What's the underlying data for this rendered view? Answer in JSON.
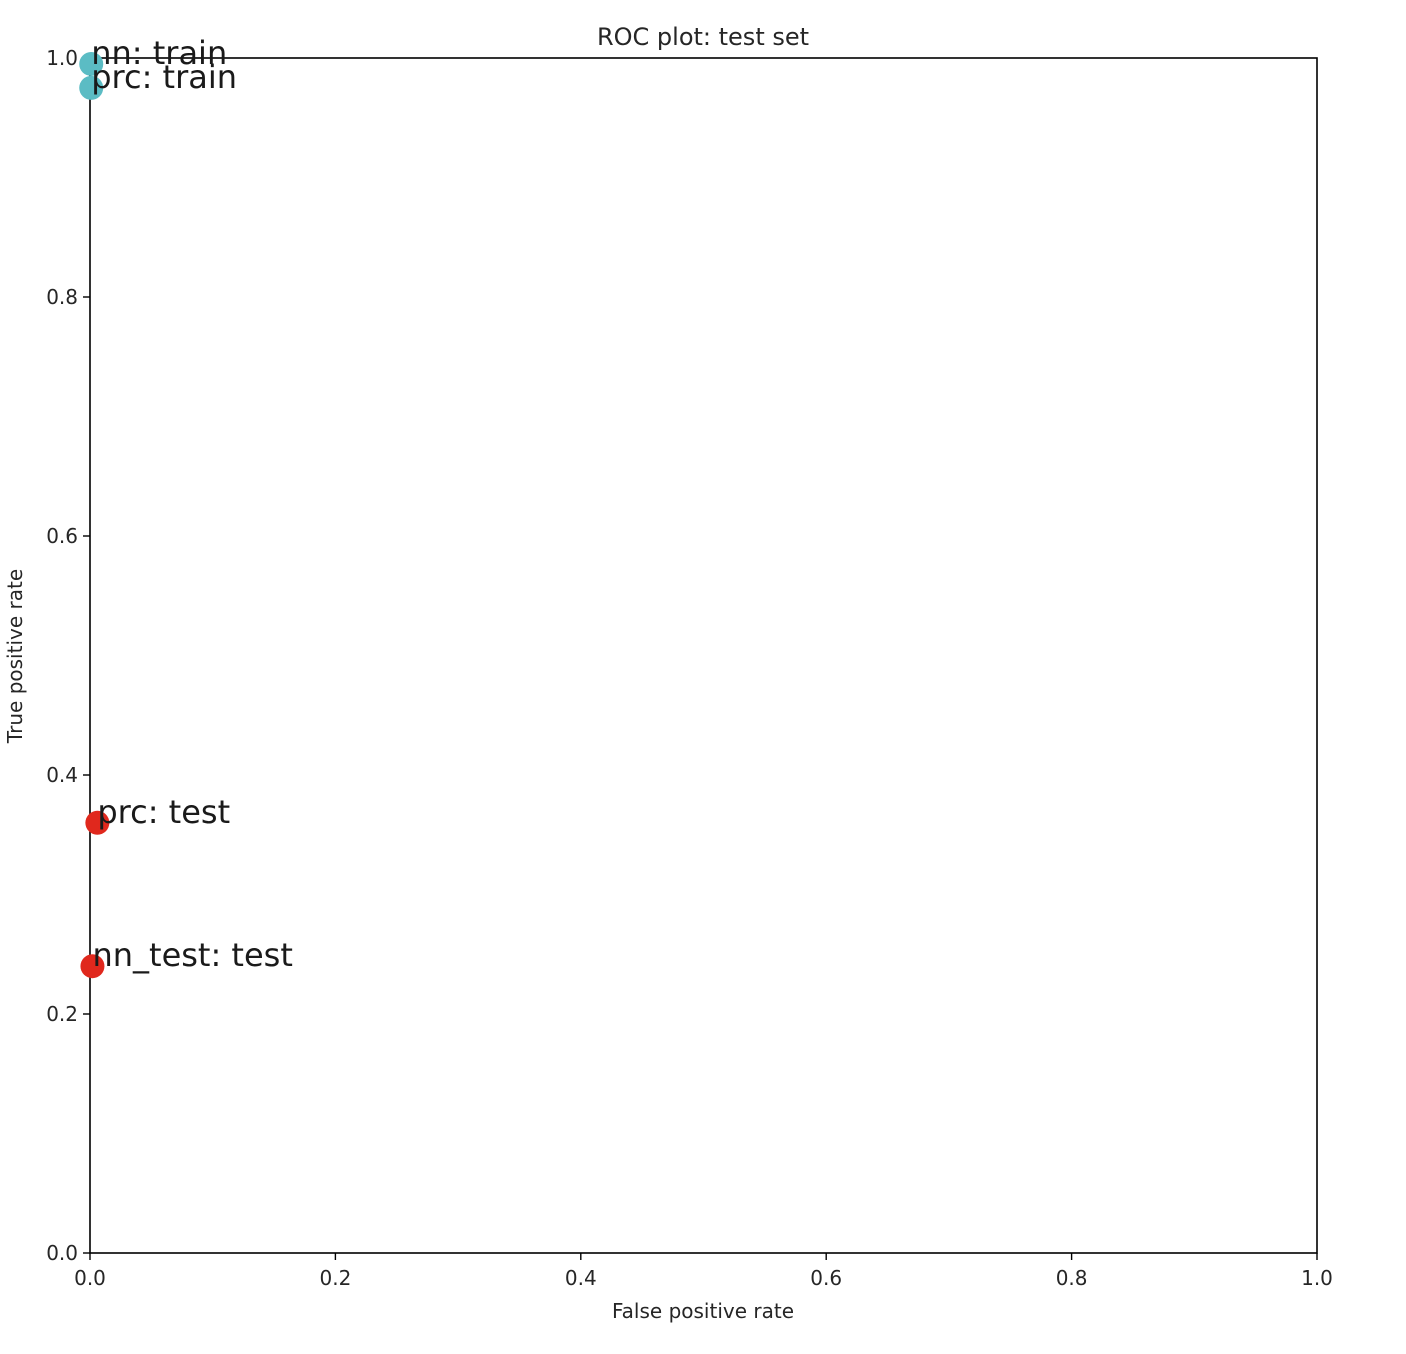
{
  "chart_data": {
    "type": "scatter",
    "title": "ROC plot: test set",
    "xlabel": "False positive rate",
    "ylabel": "True positive rate",
    "xlim": [
      0.0,
      1.0
    ],
    "ylim": [
      0.0,
      1.0
    ],
    "x_ticks": [
      "0.0",
      "0.2",
      "0.4",
      "0.6",
      "0.8",
      "1.0"
    ],
    "y_ticks": [
      "0.0",
      "0.2",
      "0.4",
      "0.6",
      "0.8",
      "1.0"
    ],
    "grid": false,
    "points": [
      {
        "label": "nn: train",
        "x": 0.001,
        "y": 0.995,
        "color": "#5bbcc4"
      },
      {
        "label": "prc: train",
        "x": 0.001,
        "y": 0.975,
        "color": "#5bbcc4"
      },
      {
        "label": "prc: test",
        "x": 0.006,
        "y": 0.36,
        "color": "#e0281d"
      },
      {
        "label": "nn_test: test",
        "x": 0.002,
        "y": 0.24,
        "color": "#e0281d"
      }
    ]
  }
}
